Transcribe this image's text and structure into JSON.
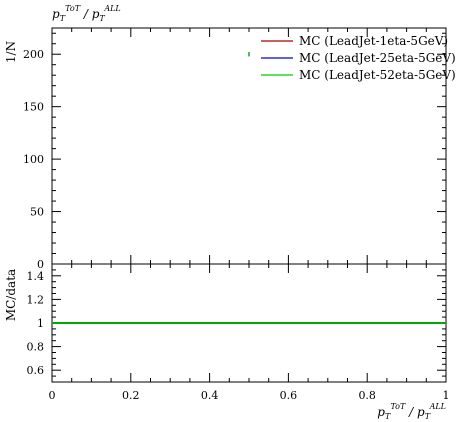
{
  "chart_data": [
    {
      "type": "scatter",
      "title": "p_T^ToT / p_T^ALL",
      "ylabel": "1/N",
      "xlim": [
        0,
        1
      ],
      "ylim": [
        0,
        225
      ],
      "yticks": [
        0,
        50,
        100,
        150,
        200
      ],
      "ytick_labels": [
        "0",
        "50",
        "100",
        "150",
        "200"
      ],
      "legend_position": "top-right",
      "series": [
        {
          "name": "MC (LeadJet-1eta-5GeV)",
          "color": "#aa0000",
          "x": [
            0.5
          ],
          "y": [
            200
          ]
        },
        {
          "name": "MC (LeadJet-25eta-5GeV)",
          "color": "#0000dd",
          "x": [
            0.5
          ],
          "y": [
            200
          ]
        },
        {
          "name": "MC (LeadJet-52eta-5GeV)",
          "color": "#00cc00",
          "x": [
            0.5
          ],
          "y": [
            200
          ]
        }
      ]
    },
    {
      "type": "line",
      "ylabel": "MC/data",
      "xlabel": "p_T^ToT / p_T^ALL",
      "xlim": [
        0,
        1
      ],
      "ylim": [
        0.5,
        1.5
      ],
      "yticks": [
        0.6,
        0.8,
        1.0,
        1.2,
        1.4
      ],
      "ytick_labels": [
        "0.6",
        "0.8",
        "1",
        "1.2",
        "1.4"
      ],
      "xticks": [
        0,
        0.2,
        0.4,
        0.6,
        0.8,
        1.0
      ],
      "xtick_labels": [
        "0",
        "0.2",
        "0.4",
        "0.6",
        "0.8",
        "1"
      ],
      "reference_value": 1.0,
      "reference_color": "#00aa00"
    }
  ]
}
